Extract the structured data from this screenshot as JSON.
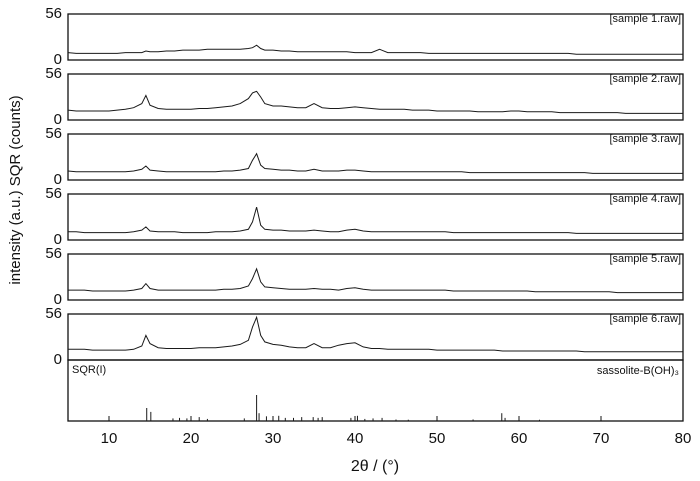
{
  "chart_data": [
    {
      "type": "line",
      "ylabel": "intensity (a.u.)  SQR (counts)",
      "xlabel": "2θ / (°)",
      "xlim": [
        5,
        80
      ],
      "xticks": [
        10,
        20,
        30,
        40,
        50,
        60,
        70,
        80
      ],
      "ylim": [
        0,
        56
      ],
      "yticks": [
        0,
        56
      ],
      "x": [
        5,
        6,
        7,
        8,
        9,
        10,
        11,
        12,
        13,
        14,
        14.5,
        15,
        16,
        17,
        18,
        19,
        20,
        21,
        22,
        23,
        24,
        25,
        26,
        27,
        27.5,
        28,
        28.5,
        29,
        30,
        31,
        32,
        33,
        34,
        35,
        36,
        37,
        38,
        39,
        40,
        41,
        42,
        43,
        44,
        45,
        46,
        47,
        48,
        49,
        50,
        51,
        52,
        53,
        54,
        55,
        56,
        57,
        58,
        59,
        60,
        61,
        62,
        63,
        64,
        65,
        66,
        67,
        68,
        69,
        70,
        71,
        72,
        73,
        74,
        75,
        76,
        77,
        78,
        79,
        80
      ],
      "series": [
        {
          "name": "[sample 1.raw]",
          "color": "#1a1a1a",
          "values": [
            9,
            8,
            8,
            8,
            8,
            8,
            8,
            9,
            9,
            9,
            11,
            10,
            10,
            11,
            11,
            12,
            12,
            12,
            13,
            13,
            13,
            13,
            13,
            14,
            15,
            18,
            14,
            12,
            12,
            11,
            11,
            10,
            10,
            10,
            10,
            10,
            10,
            10,
            9,
            9,
            9,
            13,
            9,
            9,
            9,
            9,
            9,
            8,
            8,
            8,
            8,
            8,
            8,
            8,
            8,
            8,
            8,
            8,
            8,
            8,
            8,
            8,
            8,
            8,
            8,
            7,
            7,
            7,
            7,
            7,
            7,
            7,
            7,
            7,
            7,
            7,
            7,
            7,
            7
          ]
        },
        {
          "name": "[sample 2.raw]",
          "color": "#1a1a1a",
          "values": [
            12,
            11,
            11,
            11,
            11,
            11,
            12,
            13,
            15,
            20,
            30,
            18,
            14,
            13,
            13,
            13,
            13,
            14,
            14,
            15,
            16,
            17,
            20,
            26,
            33,
            35,
            28,
            20,
            17,
            17,
            16,
            15,
            15,
            20,
            15,
            14,
            14,
            15,
            16,
            15,
            14,
            13,
            13,
            13,
            13,
            12,
            12,
            12,
            11,
            11,
            11,
            11,
            11,
            10,
            10,
            10,
            10,
            11,
            11,
            10,
            10,
            10,
            10,
            9,
            9,
            9,
            9,
            9,
            9,
            9,
            9,
            8,
            8,
            8,
            8,
            8,
            8,
            8,
            8
          ]
        },
        {
          "name": "[sample 3.raw]",
          "color": "#1a1a1a",
          "values": [
            11,
            10,
            10,
            10,
            10,
            10,
            10,
            10,
            11,
            13,
            17,
            12,
            11,
            10,
            10,
            10,
            10,
            10,
            10,
            10,
            11,
            11,
            12,
            14,
            24,
            32,
            18,
            14,
            13,
            12,
            12,
            11,
            11,
            13,
            11,
            11,
            11,
            12,
            12,
            11,
            10,
            10,
            10,
            10,
            10,
            10,
            10,
            10,
            10,
            10,
            10,
            10,
            9,
            9,
            9,
            9,
            9,
            9,
            9,
            9,
            9,
            9,
            9,
            9,
            9,
            9,
            9,
            8,
            8,
            8,
            8,
            8,
            8,
            8,
            8,
            8,
            8,
            8,
            8
          ]
        },
        {
          "name": "[sample 4.raw]",
          "color": "#1a1a1a",
          "values": [
            10,
            10,
            9,
            9,
            9,
            9,
            9,
            9,
            10,
            12,
            16,
            11,
            10,
            10,
            10,
            9,
            9,
            9,
            9,
            10,
            10,
            10,
            11,
            13,
            22,
            40,
            18,
            13,
            12,
            12,
            11,
            11,
            11,
            12,
            11,
            10,
            10,
            12,
            13,
            11,
            10,
            10,
            10,
            10,
            10,
            10,
            10,
            10,
            10,
            10,
            9,
            9,
            9,
            9,
            9,
            9,
            9,
            9,
            9,
            9,
            9,
            9,
            9,
            9,
            9,
            8,
            8,
            8,
            8,
            8,
            8,
            8,
            8,
            8,
            8,
            8,
            8,
            8,
            8
          ]
        },
        {
          "name": "[sample 5.raw]",
          "color": "#1a1a1a",
          "values": [
            12,
            12,
            12,
            11,
            11,
            11,
            11,
            11,
            12,
            14,
            20,
            14,
            12,
            12,
            12,
            12,
            12,
            12,
            12,
            12,
            13,
            13,
            14,
            17,
            26,
            38,
            22,
            16,
            15,
            14,
            13,
            13,
            13,
            14,
            13,
            13,
            12,
            14,
            15,
            13,
            12,
            12,
            12,
            12,
            12,
            12,
            12,
            12,
            12,
            12,
            11,
            11,
            11,
            11,
            11,
            11,
            11,
            11,
            11,
            11,
            10,
            10,
            10,
            10,
            10,
            10,
            10,
            10,
            10,
            10,
            9,
            9,
            9,
            9,
            9,
            9,
            9,
            9,
            9
          ]
        },
        {
          "name": "[sample 6.raw]",
          "color": "#1a1a1a",
          "values": [
            13,
            13,
            13,
            12,
            12,
            12,
            12,
            12,
            13,
            17,
            30,
            20,
            15,
            14,
            14,
            14,
            14,
            15,
            15,
            15,
            16,
            17,
            19,
            24,
            40,
            52,
            30,
            22,
            19,
            18,
            16,
            15,
            15,
            20,
            15,
            15,
            18,
            20,
            21,
            16,
            14,
            14,
            13,
            13,
            13,
            13,
            13,
            13,
            12,
            12,
            12,
            12,
            12,
            12,
            12,
            12,
            11,
            11,
            11,
            11,
            11,
            11,
            11,
            11,
            11,
            11,
            10,
            10,
            10,
            10,
            10,
            10,
            10,
            10,
            10,
            10,
            10,
            10,
            10
          ]
        }
      ]
    },
    {
      "type": "stick",
      "title": "SQR(I)",
      "phase": "sassolite-B(OH)₃",
      "ylim": [
        0,
        100
      ],
      "color": "#1a1a1a",
      "x": [
        14.6,
        15.1,
        17.8,
        18.6,
        19.5,
        21,
        22,
        26.5,
        28,
        28.3,
        29.2,
        30,
        30.7,
        31.5,
        32.5,
        33.5,
        34.9,
        35.5,
        36,
        39.5,
        40.3,
        41.2,
        42.2,
        43.3,
        45,
        46.5,
        54.4,
        57.9,
        58.3,
        62.5
      ],
      "values": [
        50,
        35,
        10,
        12,
        10,
        15,
        8,
        10,
        100,
        30,
        18,
        15,
        20,
        12,
        12,
        15,
        15,
        12,
        15,
        12,
        20,
        8,
        10,
        12,
        6,
        5,
        6,
        30,
        12,
        5
      ]
    }
  ]
}
